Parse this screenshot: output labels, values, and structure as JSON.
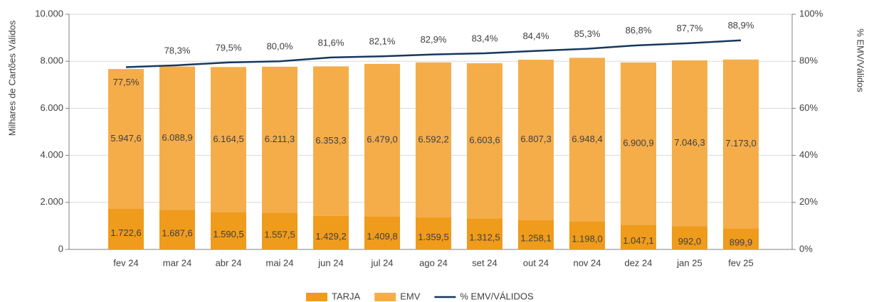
{
  "chart_data": {
    "type": "bar",
    "stacked": true,
    "y_label": "Milhares de Cartões Válidos",
    "y2_label": "% EMV/Válidos",
    "categories": [
      "fev 24",
      "mar 24",
      "abr 24",
      "mai 24",
      "jun 24",
      "jul 24",
      "ago 24",
      "set 24",
      "out 24",
      "nov 24",
      "dez 24",
      "jan 25",
      "fev 25"
    ],
    "series": [
      {
        "name": "TARJA",
        "color": "#ef9b1c",
        "values": [
          1722.6,
          1687.6,
          1590.5,
          1557.5,
          1429.2,
          1409.8,
          1359.5,
          1312.5,
          1258.1,
          1198.0,
          1047.1,
          992.0,
          899.9
        ],
        "value_labels": [
          "1.722,6",
          "1.687,6",
          "1.590,5",
          "1.557,5",
          "1.429,2",
          "1.409,8",
          "1.359,5",
          "1.312,5",
          "1.258,1",
          "1.198,0",
          "1.047,1",
          "992,0",
          "899,9"
        ]
      },
      {
        "name": "EMV",
        "color": "#f5ad4a",
        "values": [
          5947.6,
          6088.9,
          6164.5,
          6211.3,
          6353.3,
          6479.0,
          6592.2,
          6603.6,
          6807.3,
          6948.4,
          6900.9,
          7046.3,
          7173.0
        ],
        "value_labels": [
          "5.947,6",
          "6.088,9",
          "6.164,5",
          "6.211,3",
          "6.353,3",
          "6.479,0",
          "6.592,2",
          "6.603,6",
          "6.807,3",
          "6.948,4",
          "6.900,9",
          "7.046,3",
          "7.173,0"
        ]
      },
      {
        "name": "% EMV/VÁLIDOS",
        "type": "line",
        "axis": "y2",
        "color": "#17375e",
        "values": [
          77.5,
          78.3,
          79.5,
          80.0,
          81.6,
          82.1,
          82.9,
          83.4,
          84.4,
          85.3,
          86.8,
          87.7,
          88.9
        ],
        "value_labels": [
          "77,5%",
          "78,3%",
          "79,5%",
          "80,0%",
          "81,6%",
          "82,1%",
          "82,9%",
          "83,4%",
          "84,4%",
          "85,3%",
          "86,8%",
          "87,7%",
          "88,9%"
        ]
      }
    ],
    "ylim": [
      0,
      10000
    ],
    "yticks": [
      0,
      {
        "value": 2000,
        "label": "2.000"
      },
      {
        "value": 4000,
        "label": "4.000"
      },
      {
        "value": 6000,
        "label": "6.000"
      },
      {
        "value": 8000,
        "label": "8.000"
      },
      {
        "value": 10000,
        "label": "10.000"
      }
    ],
    "y2lim": [
      0,
      100
    ],
    "y2ticks": [
      {
        "value": 0,
        "label": "0%"
      },
      {
        "value": 20,
        "label": "20%"
      },
      {
        "value": 40,
        "label": "40%"
      },
      {
        "value": 60,
        "label": "60%"
      },
      {
        "value": 80,
        "label": "80%"
      },
      {
        "value": 100,
        "label": "100%"
      }
    ],
    "grid": true,
    "legend": "bottom"
  }
}
